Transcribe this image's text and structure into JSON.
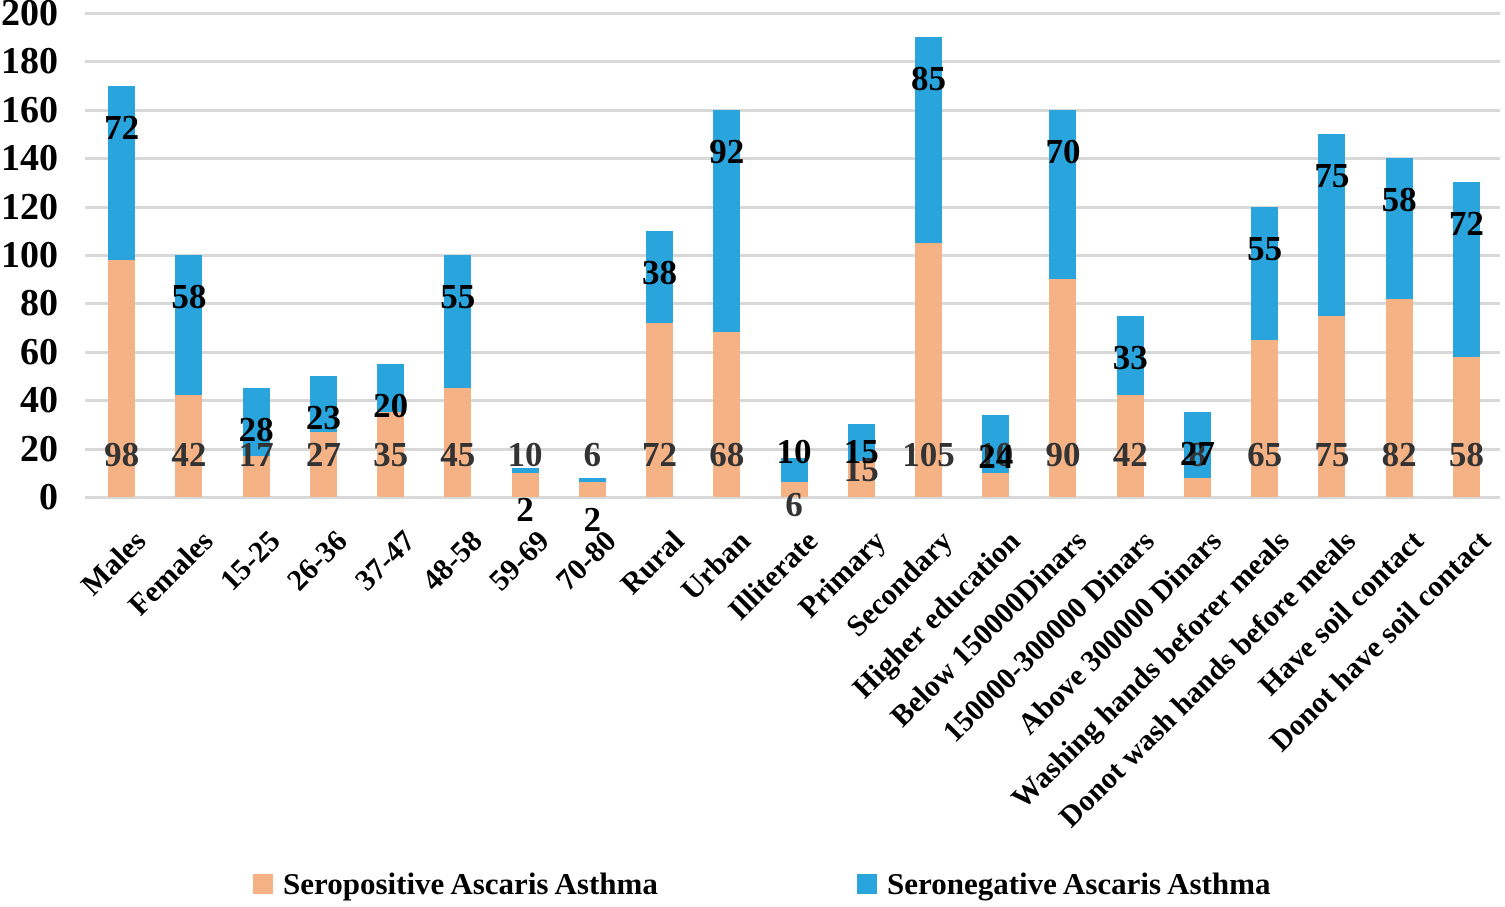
{
  "chart_data": {
    "type": "bar",
    "stacked": true,
    "title": "",
    "xlabel": "",
    "ylabel": "",
    "ylim": [
      0,
      200
    ],
    "y_ticks": [
      0,
      20,
      40,
      60,
      80,
      100,
      120,
      140,
      160,
      180,
      200
    ],
    "grid": true,
    "legend_position": "bottom",
    "categories": [
      "Males",
      "Females",
      "15-25",
      "26-36",
      "37-47",
      "48-58",
      "59-69",
      "70-80",
      "Rural",
      "Urban",
      "Illiterate",
      "Primary",
      "Secondary",
      "Higher education",
      "Below 150000Dinars",
      "150000-300000 Dinars",
      "Above 300000 Dinars",
      "Washing hands beforer meals",
      "Donot wash hands before meals",
      "Have soil contact",
      "Donot have soil contact"
    ],
    "series": [
      {
        "name": "Seropositive Ascaris Asthma",
        "color": "#F5B285",
        "label_color": "#333333",
        "values": [
          98,
          42,
          17,
          27,
          35,
          45,
          10,
          6,
          72,
          68,
          6,
          15,
          105,
          10,
          90,
          42,
          8,
          65,
          75,
          82,
          58
        ]
      },
      {
        "name": "Seronegative Ascaris Asthma",
        "color": "#29A4DC",
        "label_color": "#000000",
        "values": [
          72,
          58,
          28,
          23,
          20,
          55,
          2,
          2,
          38,
          92,
          10,
          15,
          85,
          24,
          70,
          33,
          27,
          55,
          75,
          58,
          72
        ]
      }
    ]
  },
  "colors": {
    "background": "#FFFFFF",
    "gridline": "#D8D8D8",
    "axis_text": "#000000"
  }
}
